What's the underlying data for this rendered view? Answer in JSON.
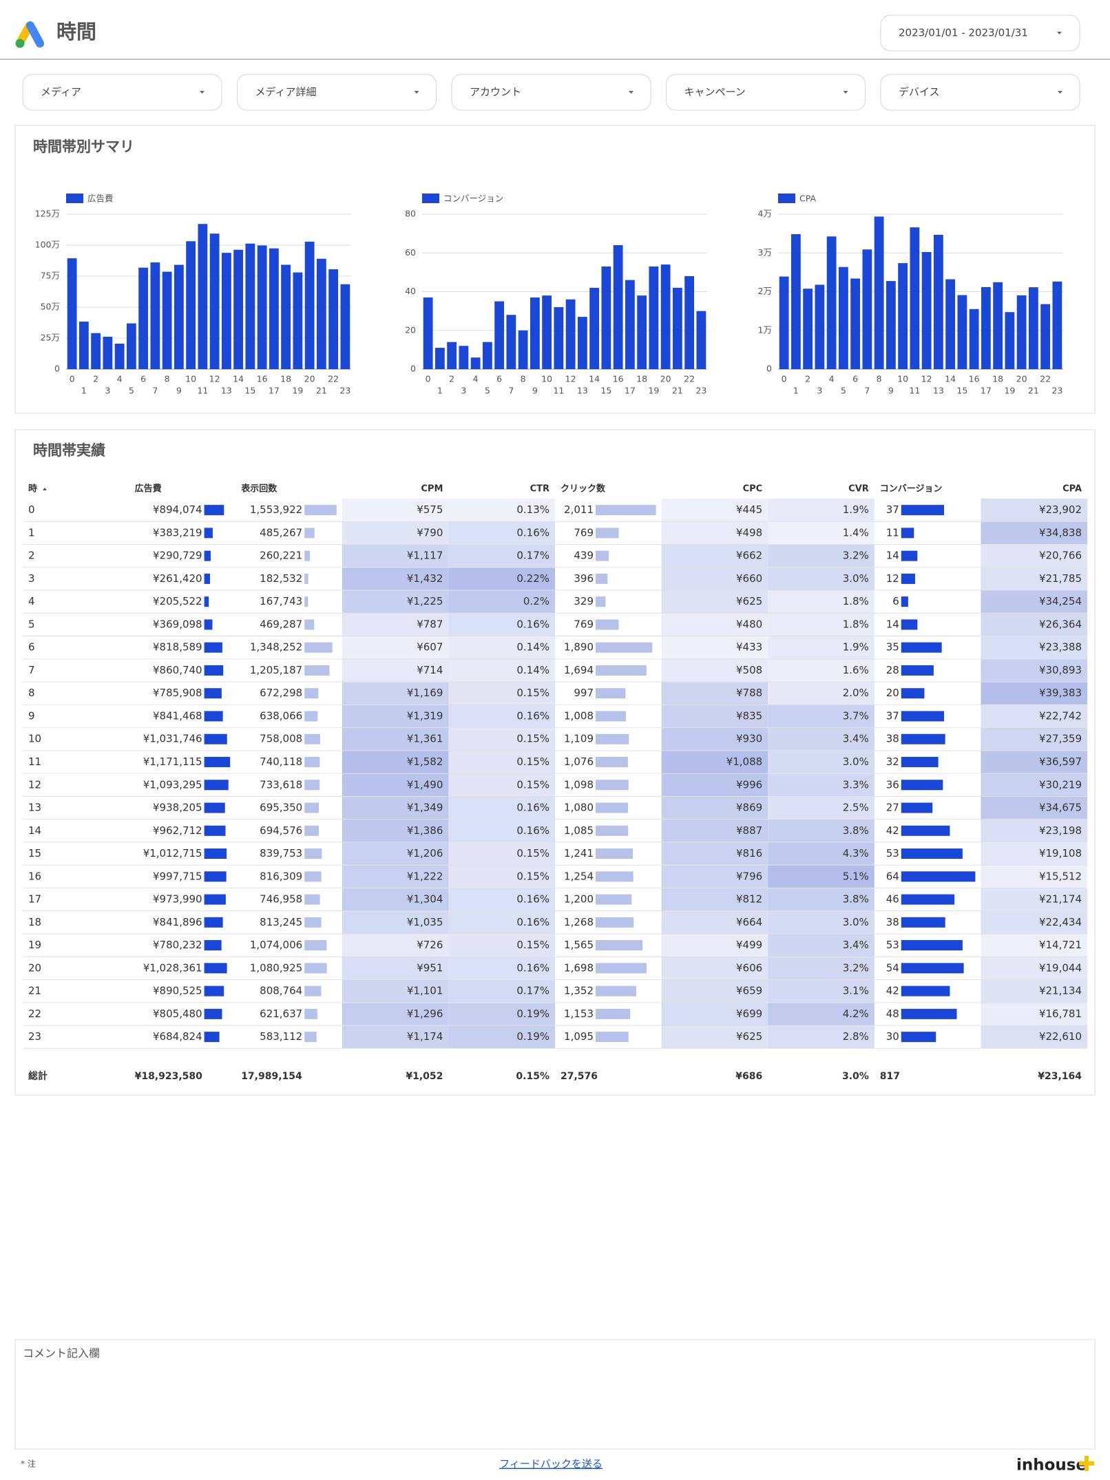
{
  "header": {
    "title": "時間",
    "date_range": "2023/01/01 - 2023/01/31"
  },
  "filters": [
    "メディア",
    "メディア詳細",
    "アカウント",
    "キャンペーン",
    "デバイス"
  ],
  "summary": {
    "title": "時間帯別サマリ"
  },
  "chart_data": [
    {
      "type": "bar",
      "categories": [
        "0",
        "1",
        "2",
        "3",
        "4",
        "5",
        "6",
        "7",
        "8",
        "9",
        "10",
        "11",
        "12",
        "13",
        "14",
        "15",
        "16",
        "17",
        "18",
        "19",
        "20",
        "21",
        "22",
        "23"
      ],
      "series": [
        {
          "name": "広告費",
          "color": "#1a47d8",
          "values": [
            894074,
            383219,
            290729,
            261420,
            205522,
            369098,
            818589,
            860740,
            785908,
            841468,
            1031746,
            1171115,
            1093295,
            938205,
            962712,
            1012715,
            997715,
            973990,
            841896,
            780232,
            1028361,
            890525,
            805480,
            684824
          ]
        }
      ],
      "ylim": [
        0,
        1250000
      ],
      "yticks": [
        0,
        {
          "value": 250000,
          "label": "25万"
        },
        {
          "value": 500000,
          "label": "50万"
        },
        {
          "value": 750000,
          "label": "75万"
        },
        {
          "value": 1000000,
          "label": "100万"
        },
        {
          "value": 1250000,
          "label": "125万"
        }
      ],
      "grid": true
    },
    {
      "type": "bar",
      "categories": [
        "0",
        "1",
        "2",
        "3",
        "4",
        "5",
        "6",
        "7",
        "8",
        "9",
        "10",
        "11",
        "12",
        "13",
        "14",
        "15",
        "16",
        "17",
        "18",
        "19",
        "20",
        "21",
        "22",
        "23"
      ],
      "series": [
        {
          "name": "コンバージョン",
          "color": "#1a47d8",
          "values": [
            37,
            11,
            14,
            12,
            6,
            14,
            35,
            28,
            20,
            37,
            38,
            32,
            36,
            27,
            42,
            53,
            64,
            46,
            38,
            53,
            54,
            42,
            48,
            30
          ]
        }
      ],
      "ylim": [
        0,
        80
      ],
      "yticks": [
        0,
        20,
        40,
        60,
        80
      ],
      "grid": true
    },
    {
      "type": "bar",
      "categories": [
        "0",
        "1",
        "2",
        "3",
        "4",
        "5",
        "6",
        "7",
        "8",
        "9",
        "10",
        "11",
        "12",
        "13",
        "14",
        "15",
        "16",
        "17",
        "18",
        "19",
        "20",
        "21",
        "22",
        "23"
      ],
      "series": [
        {
          "name": "CPA",
          "color": "#1a47d8",
          "values": [
            23902,
            34838,
            20766,
            21785,
            34254,
            26364,
            23388,
            30893,
            39383,
            22742,
            27359,
            36597,
            30219,
            34675,
            23198,
            19108,
            15512,
            21174,
            22434,
            14721,
            19044,
            21134,
            16781,
            22610
          ]
        }
      ],
      "ylim": [
        0,
        40000
      ],
      "yticks": [
        0,
        {
          "value": 10000,
          "label": "1万"
        },
        {
          "value": 20000,
          "label": "2万"
        },
        {
          "value": 30000,
          "label": "3万"
        },
        {
          "value": 40000,
          "label": "4万"
        }
      ],
      "grid": true
    }
  ],
  "table": {
    "title": "時間帯実績",
    "total_label": "総計",
    "heat_colors": [
      "#eef0fa",
      "#b3bfea"
    ],
    "columns": [
      {
        "header": "時",
        "values": [
          0,
          1,
          2,
          3,
          4,
          5,
          6,
          7,
          8,
          9,
          10,
          11,
          12,
          13,
          14,
          15,
          16,
          17,
          18,
          19,
          20,
          21,
          22,
          23
        ]
      },
      {
        "header": "広告費",
        "style": "bar",
        "bar_color": "#1a47d8",
        "total": "¥18,923,580",
        "values": [
          894074,
          383219,
          290729,
          261420,
          205522,
          369098,
          818589,
          860740,
          785908,
          841468,
          1031746,
          1171115,
          1093295,
          938205,
          962712,
          1012715,
          997715,
          973990,
          841896,
          780232,
          1028361,
          890525,
          805480,
          684824
        ],
        "value_labels": [
          "¥894,074",
          "¥383,219",
          "¥290,729",
          "¥261,420",
          "¥205,522",
          "¥369,098",
          "¥818,589",
          "¥860,740",
          "¥785,908",
          "¥841,468",
          "¥1,031,746",
          "¥1,171,115",
          "¥1,093,295",
          "¥938,205",
          "¥962,712",
          "¥1,012,715",
          "¥997,715",
          "¥973,990",
          "¥841,896",
          "¥780,232",
          "¥1,028,361",
          "¥890,525",
          "¥805,480",
          "¥684,824"
        ]
      },
      {
        "header": "表示回数",
        "style": "bar",
        "bar_color": "#b7c2ea",
        "total": "17,989,154",
        "values": [
          1553922,
          485267,
          260221,
          182532,
          167743,
          469287,
          1348252,
          1205187,
          672298,
          638066,
          758008,
          740118,
          733618,
          695350,
          694576,
          839753,
          816309,
          746958,
          813245,
          1074006,
          1080925,
          808764,
          621637,
          583112
        ],
        "value_labels": [
          "1,553,922",
          "485,267",
          "260,221",
          "182,532",
          "167,743",
          "469,287",
          "1,348,252",
          "1,205,187",
          "672,298",
          "638,066",
          "758,008",
          "740,118",
          "733,618",
          "695,350",
          "694,576",
          "839,753",
          "816,309",
          "746,958",
          "813,245",
          "1,074,006",
          "1,080,925",
          "808,764",
          "621,637",
          "583,112"
        ]
      },
      {
        "header": "CPM",
        "style": "heat",
        "total": "¥1,052",
        "values": [
          575,
          790,
          1117,
          1432,
          1225,
          787,
          607,
          714,
          1169,
          1319,
          1361,
          1582,
          1490,
          1349,
          1386,
          1206,
          1222,
          1304,
          1035,
          726,
          951,
          1101,
          1296,
          1174
        ],
        "value_labels": [
          "¥575",
          "¥790",
          "¥1,117",
          "¥1,432",
          "¥1,225",
          "¥787",
          "¥607",
          "¥714",
          "¥1,169",
          "¥1,319",
          "¥1,361",
          "¥1,582",
          "¥1,490",
          "¥1,349",
          "¥1,386",
          "¥1,206",
          "¥1,222",
          "¥1,304",
          "¥1,035",
          "¥726",
          "¥951",
          "¥1,101",
          "¥1,296",
          "¥1,174"
        ]
      },
      {
        "header": "CTR",
        "style": "heat",
        "total": "0.15%",
        "values": [
          0.13,
          0.16,
          0.17,
          0.22,
          0.2,
          0.16,
          0.14,
          0.14,
          0.15,
          0.16,
          0.15,
          0.15,
          0.15,
          0.16,
          0.16,
          0.15,
          0.15,
          0.16,
          0.16,
          0.15,
          0.16,
          0.17,
          0.19,
          0.19
        ],
        "value_labels": [
          "0.13%",
          "0.16%",
          "0.17%",
          "0.22%",
          "0.2%",
          "0.16%",
          "0.14%",
          "0.14%",
          "0.15%",
          "0.16%",
          "0.15%",
          "0.15%",
          "0.15%",
          "0.16%",
          "0.16%",
          "0.15%",
          "0.15%",
          "0.16%",
          "0.16%",
          "0.15%",
          "0.16%",
          "0.17%",
          "0.19%",
          "0.19%"
        ]
      },
      {
        "header": "クリック数",
        "style": "bar",
        "bar_color": "#b7c2ea",
        "total": "27,576",
        "values": [
          2011,
          769,
          439,
          396,
          329,
          769,
          1890,
          1694,
          997,
          1008,
          1109,
          1076,
          1098,
          1080,
          1085,
          1241,
          1254,
          1200,
          1268,
          1565,
          1698,
          1352,
          1153,
          1095
        ],
        "value_labels": [
          "2,011",
          "769",
          "439",
          "396",
          "329",
          "769",
          "1,890",
          "1,694",
          "997",
          "1,008",
          "1,109",
          "1,076",
          "1,098",
          "1,080",
          "1,085",
          "1,241",
          "1,254",
          "1,200",
          "1,268",
          "1,565",
          "1,698",
          "1,352",
          "1,153",
          "1,095"
        ]
      },
      {
        "header": "CPC",
        "style": "heat",
        "total": "¥686",
        "values": [
          445,
          498,
          662,
          660,
          625,
          480,
          433,
          508,
          788,
          835,
          930,
          1088,
          996,
          869,
          887,
          816,
          796,
          812,
          664,
          499,
          606,
          659,
          699,
          625
        ],
        "value_labels": [
          "¥445",
          "¥498",
          "¥662",
          "¥660",
          "¥625",
          "¥480",
          "¥433",
          "¥508",
          "¥788",
          "¥835",
          "¥930",
          "¥1,088",
          "¥996",
          "¥869",
          "¥887",
          "¥816",
          "¥796",
          "¥812",
          "¥664",
          "¥499",
          "¥606",
          "¥659",
          "¥699",
          "¥625"
        ]
      },
      {
        "header": "CVR",
        "style": "heat",
        "total": "3.0%",
        "values": [
          1.9,
          1.4,
          3.2,
          3.0,
          1.8,
          1.8,
          1.9,
          1.6,
          2.0,
          3.7,
          3.4,
          3.0,
          3.3,
          2.5,
          3.8,
          4.3,
          5.1,
          3.8,
          3.0,
          3.4,
          3.2,
          3.1,
          4.2,
          2.8
        ],
        "value_labels": [
          "1.9%",
          "1.4%",
          "3.2%",
          "3.0%",
          "1.8%",
          "1.8%",
          "1.9%",
          "1.6%",
          "2.0%",
          "3.7%",
          "3.4%",
          "3.0%",
          "3.3%",
          "2.5%",
          "3.8%",
          "4.3%",
          "5.1%",
          "3.8%",
          "3.0%",
          "3.4%",
          "3.2%",
          "3.1%",
          "4.2%",
          "2.8%"
        ]
      },
      {
        "header": "コンバージョン",
        "style": "bar",
        "bar_color": "#1a47d8",
        "total": "817",
        "values": [
          37,
          11,
          14,
          12,
          6,
          14,
          35,
          28,
          20,
          37,
          38,
          32,
          36,
          27,
          42,
          53,
          64,
          46,
          38,
          53,
          54,
          42,
          48,
          30
        ]
      },
      {
        "header": "CPA",
        "style": "heat",
        "total": "¥23,164",
        "values": [
          23902,
          34838,
          20766,
          21785,
          34254,
          26364,
          23388,
          30893,
          39383,
          22742,
          27359,
          36597,
          30219,
          34675,
          23198,
          19108,
          15512,
          21174,
          22434,
          14721,
          19044,
          21134,
          16781,
          22610
        ],
        "value_labels": [
          "¥23,902",
          "¥34,838",
          "¥20,766",
          "¥21,785",
          "¥34,254",
          "¥26,364",
          "¥23,388",
          "¥30,893",
          "¥39,383",
          "¥22,742",
          "¥27,359",
          "¥36,597",
          "¥30,219",
          "¥34,675",
          "¥23,198",
          "¥19,108",
          "¥15,512",
          "¥21,174",
          "¥22,434",
          "¥14,721",
          "¥19,044",
          "¥21,134",
          "¥16,781",
          "¥22,610"
        ]
      }
    ]
  },
  "comment": {
    "label": "コメント記入欄"
  },
  "footer": {
    "note": "* 注",
    "link": "フィードバックを送る",
    "brand": "inhouse"
  }
}
